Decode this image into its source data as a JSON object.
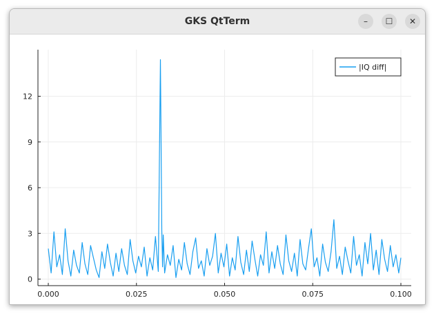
{
  "window": {
    "title": "GKS QtTerm",
    "minimize_glyph": "–",
    "maximize_glyph": "☐",
    "close_glyph": "✕"
  },
  "chart_data": {
    "type": "line",
    "title": "",
    "xlabel": "",
    "ylabel": "",
    "xlim": [
      0.0,
      0.1
    ],
    "ylim": [
      0,
      14.4
    ],
    "xticks": [
      0.0,
      0.025,
      0.05,
      0.075,
      0.1
    ],
    "xtick_labels": [
      "0.000",
      "0.025",
      "0.050",
      "0.075",
      "0.100"
    ],
    "yticks": [
      0,
      3,
      6,
      9,
      12
    ],
    "ytick_labels": [
      "0",
      "3",
      "6",
      "9",
      "12"
    ],
    "grid": true,
    "legend": "top-right",
    "color": "#179ef0",
    "series": [
      {
        "name": "|IQ diff|",
        "x": [
          0.0,
          0.0008,
          0.0016,
          0.0024,
          0.0032,
          0.004,
          0.0048,
          0.0056,
          0.0064,
          0.0072,
          0.008,
          0.0088,
          0.0096,
          0.0104,
          0.0112,
          0.012,
          0.0128,
          0.0136,
          0.0144,
          0.0152,
          0.016,
          0.0168,
          0.0176,
          0.0184,
          0.0192,
          0.02,
          0.0208,
          0.0216,
          0.0224,
          0.0232,
          0.024,
          0.0248,
          0.0256,
          0.0264,
          0.0272,
          0.028,
          0.0288,
          0.0296,
          0.0304,
          0.0312,
          0.0318,
          0.0322,
          0.0324,
          0.0326,
          0.033,
          0.0338,
          0.0346,
          0.0354,
          0.0362,
          0.037,
          0.0378,
          0.0386,
          0.0394,
          0.0402,
          0.041,
          0.0418,
          0.0426,
          0.0434,
          0.0442,
          0.045,
          0.0458,
          0.0466,
          0.0474,
          0.0482,
          0.049,
          0.0498,
          0.0506,
          0.0514,
          0.0522,
          0.053,
          0.0538,
          0.0546,
          0.0554,
          0.0562,
          0.057,
          0.0578,
          0.0586,
          0.0594,
          0.0602,
          0.061,
          0.0618,
          0.0626,
          0.0634,
          0.0642,
          0.065,
          0.0658,
          0.0666,
          0.0674,
          0.0682,
          0.069,
          0.0698,
          0.0706,
          0.0714,
          0.0722,
          0.073,
          0.0738,
          0.0746,
          0.0754,
          0.0762,
          0.077,
          0.0778,
          0.0786,
          0.0794,
          0.0802,
          0.081,
          0.0818,
          0.0826,
          0.0834,
          0.0842,
          0.085,
          0.0858,
          0.0866,
          0.0874,
          0.0882,
          0.089,
          0.0898,
          0.0906,
          0.0914,
          0.0922,
          0.093,
          0.0938,
          0.0946,
          0.0954,
          0.0962,
          0.097,
          0.0978,
          0.0986,
          0.0994,
          0.1
        ],
        "y": [
          2.0,
          0.4,
          3.1,
          0.8,
          1.6,
          0.3,
          3.3,
          1.2,
          0.2,
          1.9,
          0.9,
          0.4,
          2.4,
          1.0,
          0.3,
          2.2,
          1.4,
          0.6,
          0.1,
          1.8,
          0.7,
          2.3,
          1.1,
          0.2,
          1.7,
          0.5,
          2.0,
          0.9,
          0.3,
          2.6,
          1.2,
          0.4,
          1.5,
          0.8,
          2.1,
          0.2,
          1.4,
          0.6,
          2.8,
          0.5,
          14.4,
          3.2,
          0.8,
          2.9,
          0.4,
          1.6,
          0.9,
          2.2,
          0.1,
          1.3,
          0.6,
          2.4,
          1.0,
          0.3,
          1.8,
          2.7,
          0.7,
          1.2,
          0.2,
          2.0,
          0.9,
          1.5,
          3.0,
          0.4,
          1.7,
          0.8,
          2.3,
          0.2,
          1.4,
          0.6,
          2.8,
          1.1,
          0.3,
          1.9,
          0.5,
          2.5,
          1.3,
          0.2,
          1.6,
          0.9,
          3.1,
          0.4,
          1.8,
          0.7,
          2.2,
          1.0,
          0.3,
          2.9,
          1.2,
          0.5,
          1.7,
          0.2,
          2.6,
          1.0,
          0.6,
          2.0,
          3.3,
          0.8,
          1.4,
          0.2,
          2.3,
          1.1,
          0.5,
          1.8,
          3.9,
          0.7,
          1.5,
          0.3,
          2.1,
          1.2,
          0.4,
          2.8,
          0.9,
          1.6,
          0.2,
          2.4,
          1.0,
          3.0,
          0.6,
          1.9,
          0.3,
          2.6,
          1.3,
          0.5,
          2.2,
          0.8,
          1.6,
          0.4,
          1.4
        ]
      }
    ]
  }
}
